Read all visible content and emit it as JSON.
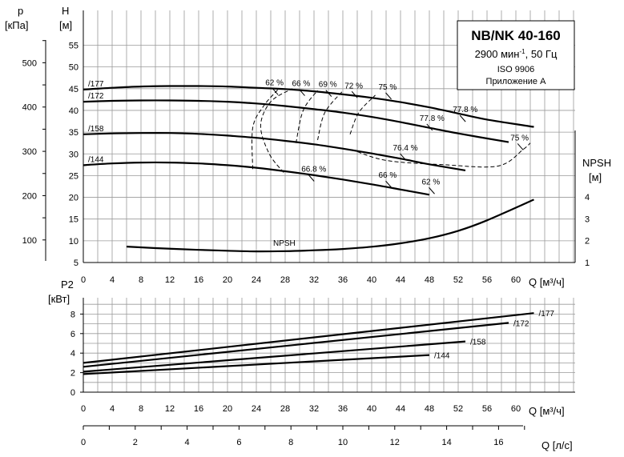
{
  "title": {
    "model": "NB/NK 40-160",
    "speed_prefix": "2900 мин",
    "speed_sup": "-1",
    "speed_suffix": ", 50 Гц",
    "standard": "ISO 9906",
    "annex": "Приложение А"
  },
  "labels": {
    "p_axis": "p",
    "p_unit": "[кПа]",
    "h_axis": "H",
    "h_unit": "[м]",
    "npsh_axis": "NPSH",
    "npsh_unit": "[м]",
    "q_m3h_top": "Q [м³/ч]",
    "p2_axis": "P2",
    "p2_unit": "[кВт]",
    "q_m3h_bottom": "Q [м³/ч]",
    "q_ls": "Q [л/с]",
    "npsh_curve_label": "NPSH"
  },
  "chart_data": [
    {
      "type": "line",
      "name": "head-curves",
      "x_axis": {
        "label": "Q [м³/ч]",
        "range": [
          0,
          64
        ],
        "ticks": [
          0,
          4,
          8,
          12,
          16,
          20,
          24,
          28,
          32,
          36,
          40,
          44,
          48,
          52,
          56,
          60
        ]
      },
      "y_axis": {
        "label": "H [м]",
        "range": [
          5,
          57
        ],
        "ticks": [
          5,
          10,
          15,
          20,
          25,
          30,
          35,
          40,
          45,
          50,
          55
        ]
      },
      "y_axis_p": {
        "label": "p [кПа]",
        "ticks": [
          100,
          200,
          300,
          400,
          500
        ]
      },
      "y_axis_npsh": {
        "label": "NPSH [м]",
        "range": [
          1,
          5
        ],
        "ticks": [
          1,
          2,
          3,
          4
        ]
      },
      "grid": true,
      "series": [
        {
          "name": "/177",
          "x": [
            0,
            4,
            8,
            12,
            16,
            20,
            24,
            28,
            32,
            36,
            40,
            44,
            48,
            52,
            56,
            62.5
          ],
          "y": [
            44.8,
            45.2,
            45.5,
            45.6,
            45.6,
            45.5,
            45.2,
            44.9,
            44.4,
            43.7,
            42.9,
            41.9,
            40.7,
            39.3,
            37.9,
            36.2
          ]
        },
        {
          "name": "/172",
          "x": [
            0,
            4,
            8,
            12,
            16,
            20,
            24,
            28,
            32,
            36,
            40,
            44,
            48,
            52,
            59
          ],
          "y": [
            42.0,
            42.2,
            42.3,
            42.3,
            42.2,
            42.0,
            41.6,
            41.0,
            40.3,
            39.5,
            38.5,
            37.3,
            36.0,
            34.7,
            32.7
          ]
        },
        {
          "name": "/158",
          "x": [
            0,
            4,
            8,
            12,
            16,
            20,
            24,
            28,
            32,
            36,
            40,
            44,
            48,
            53
          ],
          "y": [
            34.5,
            34.7,
            34.8,
            34.8,
            34.6,
            34.2,
            33.7,
            33.0,
            32.2,
            31.2,
            30.1,
            28.9,
            27.6,
            26.2
          ]
        },
        {
          "name": "/144",
          "x": [
            0,
            4,
            8,
            12,
            16,
            20,
            24,
            28,
            32,
            36,
            40,
            44,
            48
          ],
          "y": [
            27.4,
            27.8,
            28.0,
            28.0,
            27.8,
            27.4,
            26.8,
            26.0,
            25.1,
            24.1,
            23.0,
            21.8,
            20.6
          ]
        },
        {
          "name": "NPSH",
          "axis": "npsh",
          "x": [
            6,
            10,
            16,
            20,
            24,
            28,
            32,
            36,
            40,
            44,
            48,
            52,
            56,
            62.5
          ],
          "y": [
            1.73,
            1.66,
            1.58,
            1.54,
            1.51,
            1.52,
            1.56,
            1.62,
            1.72,
            1.88,
            2.11,
            2.45,
            2.93,
            3.88
          ]
        }
      ],
      "efficiency_labels": [
        {
          "text": "62 %",
          "x": 26.8,
          "y": 45.8
        },
        {
          "text": "66 %",
          "x": 30.5,
          "y": 45.6
        },
        {
          "text": "69 %",
          "x": 34.2,
          "y": 45.4
        },
        {
          "text": "72 %",
          "x": 37.8,
          "y": 45.1
        },
        {
          "text": "75 %",
          "x": 42.5,
          "y": 44.8
        },
        {
          "text": "77.8 %",
          "x": 52.8,
          "y": 39.6
        },
        {
          "text": "77.8 %",
          "x": 48.2,
          "y": 37.6
        },
        {
          "text": "75 %",
          "x": 60.8,
          "y": 33.1
        },
        {
          "text": "76.4 %",
          "x": 44.5,
          "y": 30.8
        },
        {
          "text": "66.8 %",
          "x": 31.8,
          "y": 25.9
        },
        {
          "text": "66 %",
          "x": 42.5,
          "y": 24.5
        },
        {
          "text": "62 %",
          "x": 48.5,
          "y": 23.0
        }
      ]
    },
    {
      "type": "line",
      "name": "power-curves",
      "x_axis": {
        "label": "Q [м³/ч]",
        "range": [
          0,
          64
        ],
        "ticks": [
          0,
          4,
          8,
          12,
          16,
          20,
          24,
          28,
          32,
          36,
          40,
          44,
          48,
          52,
          56,
          60
        ]
      },
      "x_axis_ls": {
        "label": "Q [л/с]",
        "ticks": [
          0,
          2,
          4,
          6,
          8,
          10,
          12,
          14,
          16
        ]
      },
      "y_axis": {
        "label": "P2 [кВт]",
        "range": [
          0,
          9
        ],
        "ticks": [
          0,
          2,
          4,
          6,
          8
        ]
      },
      "grid": true,
      "series": [
        {
          "name": "/177",
          "x": [
            0,
            62.5
          ],
          "y": [
            3.0,
            8.1
          ]
        },
        {
          "name": "/172",
          "x": [
            0,
            59
          ],
          "y": [
            2.6,
            7.1
          ]
        },
        {
          "name": "/158",
          "x": [
            0,
            53
          ],
          "y": [
            2.1,
            5.2
          ]
        },
        {
          "name": "/144",
          "x": [
            0,
            48
          ],
          "y": [
            1.85,
            3.8
          ]
        }
      ]
    }
  ]
}
